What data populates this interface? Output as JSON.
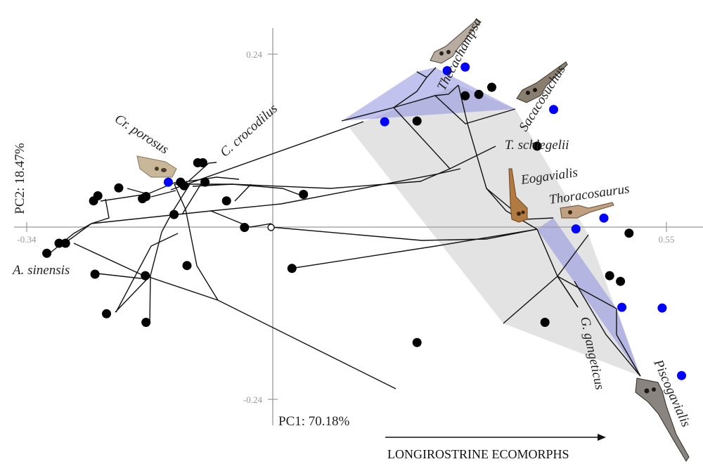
{
  "chart_data": {
    "type": "scatter",
    "title": "",
    "xlabel": "PC1: 70.18%",
    "ylabel": "PC2: 18.47%",
    "xlim": [
      -0.34,
      0.55
    ],
    "ylim": [
      -0.24,
      0.24
    ],
    "x_ticks": [
      {
        "value": -0.34,
        "label": "-0.34"
      },
      {
        "value": 0.55,
        "label": "0.55"
      }
    ],
    "y_ticks": [
      {
        "value": 0.24,
        "label": "0.24"
      },
      {
        "value": -0.24,
        "label": "-0.24"
      }
    ],
    "grid": false,
    "annotation": "LONGIROSTRINE ECOMORPHS",
    "colors": {
      "tip": "#000000",
      "longirostrine_tip": "#0000ff",
      "hull_longirostrine": "#8f8fe0",
      "hull_other": "#d9d9d9",
      "branch": "#111111",
      "axis": "#999999"
    },
    "points": [
      {
        "id": 1,
        "x": -0.312,
        "y": -0.037,
        "group": "black"
      },
      {
        "id": 2,
        "x": -0.295,
        "y": -0.023,
        "group": "black"
      },
      {
        "id": 3,
        "x": -0.286,
        "y": -0.023,
        "group": "black"
      },
      {
        "id": 4,
        "x": -0.245,
        "y": -0.066,
        "group": "black",
        "label": "A. sinensis"
      },
      {
        "id": 5,
        "x": -0.229,
        "y": -0.121,
        "group": "black"
      },
      {
        "id": 6,
        "x": -0.174,
        "y": -0.133,
        "group": "black"
      },
      {
        "id": 7,
        "x": -0.175,
        "y": -0.068,
        "group": "black"
      },
      {
        "id": 8,
        "x": -0.247,
        "y": 0.036,
        "group": "black"
      },
      {
        "id": 9,
        "x": -0.241,
        "y": 0.043,
        "group": "black"
      },
      {
        "id": 10,
        "x": -0.212,
        "y": 0.054,
        "group": "black"
      },
      {
        "id": 11,
        "x": -0.179,
        "y": 0.039,
        "group": "black"
      },
      {
        "id": 12,
        "x": -0.174,
        "y": 0.042,
        "group": "black"
      },
      {
        "id": 13,
        "x": -0.143,
        "y": 0.062,
        "group": "blue",
        "label": "Cr. porosus"
      },
      {
        "id": 14,
        "x": -0.126,
        "y": 0.062,
        "group": "black"
      },
      {
        "id": 15,
        "x": -0.121,
        "y": 0.057,
        "group": "black"
      },
      {
        "id": 16,
        "x": -0.135,
        "y": 0.017,
        "group": "black"
      },
      {
        "id": 17,
        "x": -0.102,
        "y": 0.089,
        "group": "black"
      },
      {
        "id": 18,
        "x": -0.095,
        "y": 0.089,
        "group": "black",
        "label": "C. crocodilus"
      },
      {
        "id": 19,
        "x": -0.092,
        "y": 0.062,
        "group": "black"
      },
      {
        "id": 20,
        "x": -0.062,
        "y": 0.036,
        "group": "black"
      },
      {
        "id": 21,
        "x": 0.045,
        "y": 0.045,
        "group": "black"
      },
      {
        "id": 22,
        "x": -0.117,
        "y": -0.054,
        "group": "black"
      },
      {
        "id": 23,
        "x": -0.037,
        "y": -0.001,
        "group": "black"
      },
      {
        "id": 24,
        "x": 0.0,
        "y": -0.001,
        "group": "node"
      },
      {
        "id": 25,
        "x": 0.029,
        "y": -0.058,
        "group": "black"
      },
      {
        "id": 26,
        "x": 0.203,
        "y": -0.161,
        "group": "black"
      },
      {
        "id": 27,
        "x": 0.158,
        "y": 0.146,
        "group": "blue"
      },
      {
        "id": 28,
        "x": 0.203,
        "y": 0.147,
        "group": "black"
      },
      {
        "id": 29,
        "x": 0.245,
        "y": 0.217,
        "group": "blue"
      },
      {
        "id": 30,
        "x": 0.27,
        "y": 0.222,
        "group": "blue",
        "label": "Thecachampsa"
      },
      {
        "id": 31,
        "x": 0.27,
        "y": 0.182,
        "group": "black"
      },
      {
        "id": 32,
        "x": 0.289,
        "y": 0.184,
        "group": "black"
      },
      {
        "id": 33,
        "x": 0.307,
        "y": 0.194,
        "group": "black"
      },
      {
        "id": 34,
        "x": 0.393,
        "y": 0.163,
        "group": "blue",
        "label": "Sacacosuchus"
      },
      {
        "id": 35,
        "x": 0.37,
        "y": 0.112,
        "group": "black",
        "label": "T. schlegelii"
      },
      {
        "id": 36,
        "x": 0.463,
        "y": 0.012,
        "group": "blue",
        "label": "Thoracosaurus"
      },
      {
        "id": 37,
        "x": 0.424,
        "y": -0.003,
        "group": "blue"
      },
      {
        "id": 38,
        "x": 0.498,
        "y": -0.009,
        "group": "black"
      },
      {
        "id": 39,
        "x": 0.471,
        "y": -0.068,
        "group": "black"
      },
      {
        "id": 40,
        "x": 0.486,
        "y": -0.076,
        "group": "black"
      },
      {
        "id": 41,
        "x": 0.488,
        "y": -0.112,
        "group": "blue",
        "label": "G. gangeticus"
      },
      {
        "id": 42,
        "x": 0.544,
        "y": -0.113,
        "group": "blue"
      },
      {
        "id": 43,
        "x": 0.381,
        "y": -0.133,
        "group": "black"
      },
      {
        "id": 44,
        "x": 0.571,
        "y": -0.207,
        "group": "blue",
        "label": "Piscogavialis"
      }
    ],
    "taxon_labels": [
      {
        "id": "A. sinensis"
      },
      {
        "id": "Cr. porosus"
      },
      {
        "id": "C. crocodilus"
      },
      {
        "id": "Thecachampsa"
      },
      {
        "id": "Sacacosuchus"
      },
      {
        "id": "T. schlegelii"
      },
      {
        "id": "Eogavialis"
      },
      {
        "id": "Thoracosaurus"
      },
      {
        "id": "G. gangeticus"
      },
      {
        "id": "Piscogavialis"
      }
    ],
    "skull_icons": [
      {
        "name": "porosus-skull-icon",
        "x": -0.185,
        "y": 0.08,
        "taxon": "Cr. porosus"
      },
      {
        "name": "thecachampsa-skull-icon",
        "x": 0.28,
        "y": 0.245,
        "taxon": "Thecachampsa"
      },
      {
        "name": "sacacosuchus-skull-icon",
        "x": 0.415,
        "y": 0.195,
        "taxon": "Sacacosuchus"
      },
      {
        "name": "eogavialis-skull-icon",
        "x": 0.4,
        "y": 0.045,
        "taxon": "Eogavialis"
      },
      {
        "name": "thoracosaurus-skull-icon",
        "x": 0.53,
        "y": 0.018,
        "taxon": "Thoracosaurus"
      },
      {
        "name": "piscogavialis-skull-icon",
        "x": 0.625,
        "y": -0.275,
        "taxon": "Piscogavialis"
      }
    ]
  }
}
